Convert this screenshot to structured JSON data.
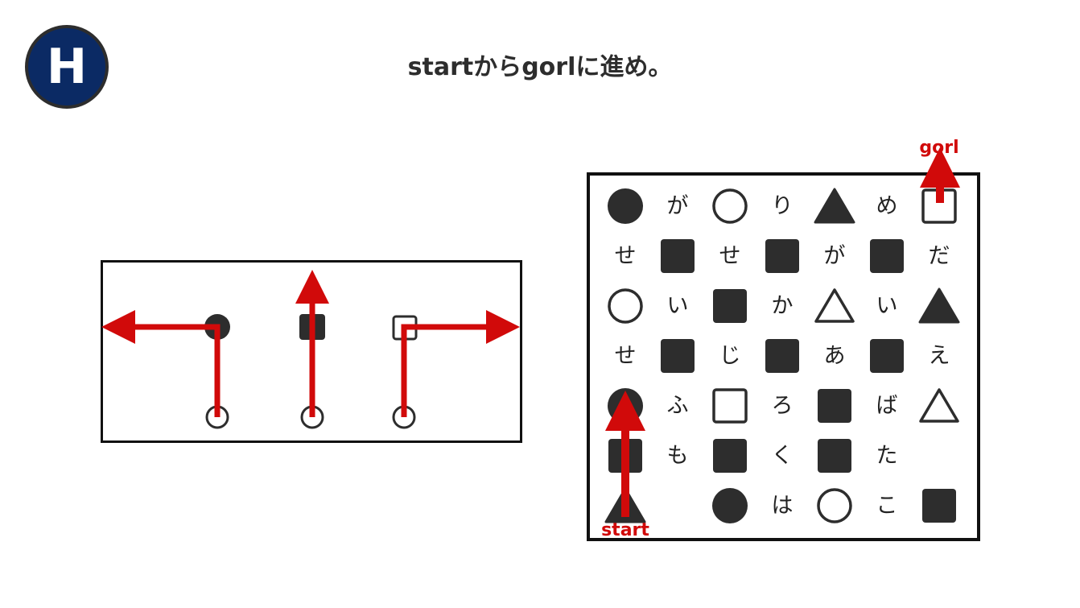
{
  "badge": {
    "letter": "H"
  },
  "title": "startからgorlに進め。",
  "colors": {
    "badge_bg": "#0b2a64",
    "ink": "#2d2d2d",
    "arrow": "#d10a0a"
  },
  "legend": {
    "rules": [
      {
        "symbol": "filled-circle",
        "turn": "left"
      },
      {
        "symbol": "filled-square",
        "turn": "straight"
      },
      {
        "symbol": "outline-square",
        "turn": "right"
      }
    ]
  },
  "board": {
    "start_label": "start",
    "goal_label": "gorl",
    "grid": [
      [
        "filled-circle",
        "が",
        "outline-circle",
        "り",
        "filled-triangle",
        "め",
        "outline-square"
      ],
      [
        "せ",
        "filled-square",
        "せ",
        "filled-square",
        "が",
        "filled-square",
        "だ"
      ],
      [
        "outline-circle",
        "い",
        "filled-square",
        "か",
        "outline-triangle",
        "い",
        "filled-triangle"
      ],
      [
        "せ",
        "filled-square",
        "じ",
        "filled-square",
        "あ",
        "filled-square",
        "え"
      ],
      [
        "filled-circle",
        "ふ",
        "outline-square",
        "ろ",
        "filled-square",
        "ば",
        "outline-triangle"
      ],
      [
        "filled-square",
        "も",
        "filled-square",
        "く",
        "filled-square",
        "た",
        ""
      ],
      [
        "filled-triangle",
        "",
        "filled-circle",
        "は",
        "outline-circle",
        "こ",
        "filled-square"
      ]
    ]
  }
}
